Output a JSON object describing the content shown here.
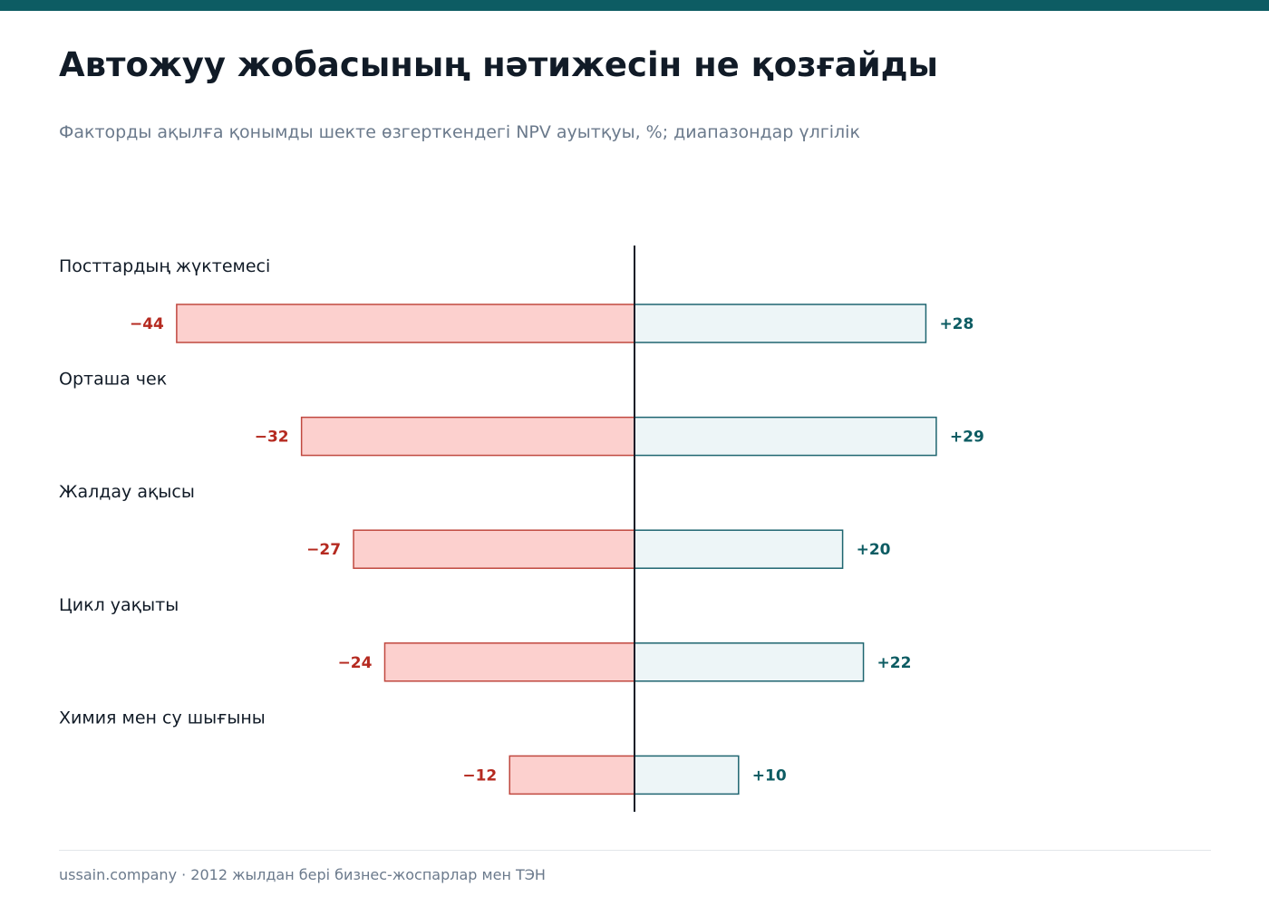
{
  "header": {
    "title": "Автожуу жобасының нәтижесін не қозғайды",
    "subtitle": "Факторды ақылға қонымды шекте өзгерткендегі NPV ауытқуы, %; диапазондар үлгілік"
  },
  "footer": {
    "text": "ussain.company · 2012 жылдан бері бизнес-жоспарлар мен ТЭН"
  },
  "chart_data": {
    "type": "bar",
    "orientation": "horizontal",
    "subtype": "tornado",
    "categories": [
      "Посттардың жүктемесі",
      "Орташа чек",
      "Жалдау ақысы",
      "Цикл уақыты",
      "Химия мен су шығыны"
    ],
    "series": [
      {
        "values": [
          -44,
          -32,
          -27,
          -24,
          -12
        ],
        "labels": [
          "−44",
          "−32",
          "−27",
          "−24",
          "−12"
        ],
        "color": "#fcd0ce",
        "stroke": "#c0483f",
        "label_color": "#b52a20"
      },
      {
        "values": [
          28,
          29,
          20,
          22,
          10
        ],
        "labels": [
          "+28",
          "+29",
          "+20",
          "+22",
          "+10"
        ],
        "color": "#edf5f7",
        "stroke": "#1e6570",
        "label_color": "#0d5c63"
      }
    ],
    "title": "",
    "xlabel": "",
    "ylabel": "",
    "xlim": [
      -44,
      29
    ],
    "grid": false,
    "legend": "none"
  }
}
